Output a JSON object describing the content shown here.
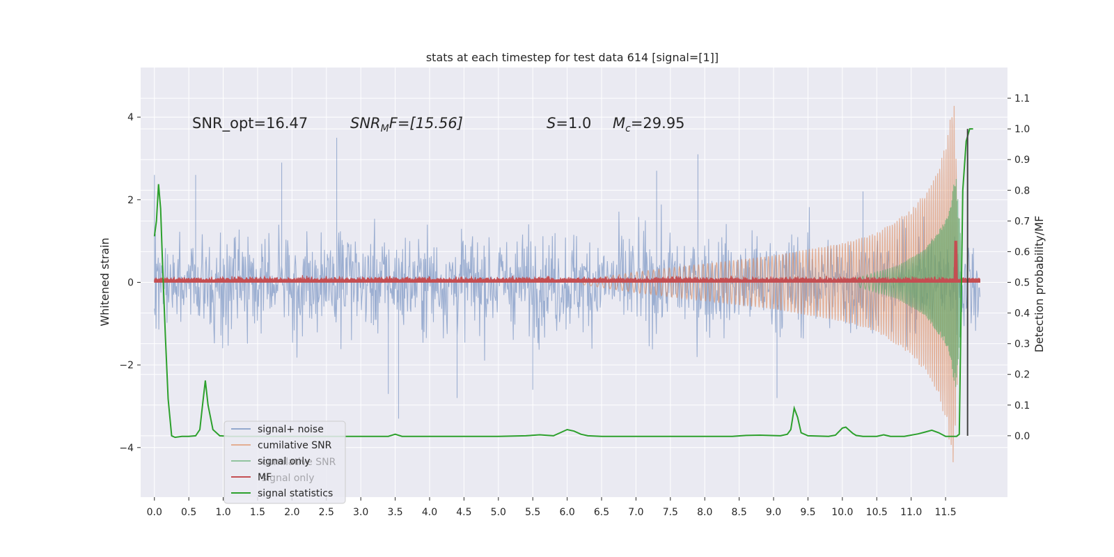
{
  "chart_data": {
    "type": "line",
    "title": "stats at each timestep for test data 614 [signal=[1]]",
    "xlabel": "",
    "ylabel": "Whitened strain",
    "y2label": "Detection probability/MF",
    "xlim": [
      -0.2,
      12.4
    ],
    "ylim": [
      -5.2,
      5.2
    ],
    "y2lim": [
      -0.2,
      1.2
    ],
    "x_ticks": [
      0.0,
      0.5,
      1.0,
      1.5,
      2.0,
      2.5,
      3.0,
      3.5,
      4.0,
      4.5,
      5.0,
      5.5,
      6.0,
      6.5,
      7.0,
      7.5,
      8.0,
      8.5,
      9.0,
      9.5,
      10.0,
      10.5,
      11.0,
      11.5
    ],
    "x_tick_labels": [
      "0.0",
      "0.5",
      "1.0",
      "1.5",
      "2.0",
      "2.5",
      "3.0",
      "3.5",
      "4.0",
      "4.5",
      "5.0",
      "5.5",
      "6.0",
      "6.5",
      "7.0",
      "7.5",
      "8.0",
      "8.5",
      "9.0",
      "9.5",
      "10.0",
      "10.5",
      "11.0",
      "11.5"
    ],
    "y_ticks": [
      -4,
      -2,
      0,
      2,
      4
    ],
    "y_tick_labels": [
      "−4",
      "−2",
      "0",
      "2",
      "4"
    ],
    "y2_ticks": [
      0.0,
      0.1,
      0.2,
      0.3,
      0.4,
      0.5,
      0.6,
      0.7,
      0.8,
      0.9,
      1.0,
      1.1
    ],
    "y2_tick_labels": [
      "0.0",
      "0.1",
      "0.2",
      "0.3",
      "0.4",
      "0.5",
      "0.6",
      "0.7",
      "0.8",
      "0.9",
      "1.0",
      "1.1"
    ],
    "grid": true,
    "legend_position": "lower-left",
    "legend": [
      "signal+ noise",
      "cumilative SNR",
      "signal only",
      "MF",
      "signal statistics"
    ],
    "legend_ghost": [
      "cumilative SNR",
      "signal only"
    ],
    "annotations": {
      "snr_opt": "SNR_opt=16.47",
      "snr_mf_name": "SNR",
      "snr_mf_sub": "M",
      "snr_mf_tail": "F=[15.56]",
      "s_name": "S",
      "s_value": "=1.0",
      "mc_name": "M",
      "mc_sub": "c",
      "mc_value": "=29.95"
    },
    "series": [
      {
        "name": "signal+ noise",
        "color": "#4c72b0",
        "axis": "left",
        "x_range": [
          0.0,
          12.0
        ],
        "typical_amplitude": 1.5,
        "spikes": [
          [
            0.0,
            2.6
          ],
          [
            0.6,
            2.6
          ],
          [
            1.85,
            2.9
          ],
          [
            2.65,
            3.5
          ],
          [
            3.4,
            -2.7
          ],
          [
            3.55,
            -3.3
          ],
          [
            4.4,
            -2.8
          ],
          [
            5.5,
            -2.6
          ],
          [
            7.3,
            2.7
          ],
          [
            7.9,
            3.1
          ],
          [
            9.05,
            -2.8
          ],
          [
            10.3,
            2.2
          ]
        ]
      },
      {
        "name": "cumilative SNR",
        "color": "#dd8452",
        "axis": "left",
        "x_range": [
          6.2,
          11.68
        ],
        "envelope": [
          [
            6.2,
            0.05
          ],
          [
            7.0,
            0.25
          ],
          [
            8.0,
            0.45
          ],
          [
            9.0,
            0.65
          ],
          [
            10.0,
            0.95
          ],
          [
            10.5,
            1.2
          ],
          [
            11.0,
            1.75
          ],
          [
            11.3,
            2.4
          ],
          [
            11.5,
            3.3
          ],
          [
            11.62,
            4.5
          ],
          [
            11.68,
            2.0
          ]
        ]
      },
      {
        "name": "signal only",
        "color": "#55a868",
        "axis": "left",
        "x_range": [
          10.2,
          11.72
        ],
        "envelope": [
          [
            10.2,
            0.1
          ],
          [
            10.8,
            0.4
          ],
          [
            11.2,
            0.8
          ],
          [
            11.5,
            1.5
          ],
          [
            11.65,
            2.6
          ],
          [
            11.72,
            1.2
          ]
        ]
      },
      {
        "name": "MF",
        "color": "#c44e52",
        "axis": "left",
        "baseline": 0.05,
        "noise": 0.12,
        "x_range": [
          0.0,
          12.0
        ],
        "peak": [
          11.65,
          1.0
        ]
      },
      {
        "name": "signal statistics",
        "color": "#2ca02c",
        "axis": "right",
        "x": [
          0.0,
          0.03,
          0.06,
          0.09,
          0.12,
          0.16,
          0.2,
          0.25,
          0.3,
          0.4,
          0.5,
          0.6,
          0.66,
          0.7,
          0.74,
          0.78,
          0.85,
          0.95,
          1.1,
          3.4,
          3.5,
          3.6,
          3.8,
          4.5,
          5.0,
          5.4,
          5.6,
          5.8,
          5.9,
          6.0,
          6.1,
          6.2,
          6.3,
          6.5,
          8.4,
          8.6,
          8.8,
          9.1,
          9.2,
          9.25,
          9.3,
          9.35,
          9.4,
          9.5,
          9.8,
          9.9,
          10.0,
          10.05,
          10.1,
          10.15,
          10.2,
          10.3,
          10.5,
          10.6,
          10.7,
          10.9,
          11.1,
          11.2,
          11.3,
          11.4,
          11.5,
          11.6,
          11.66,
          11.7,
          11.75,
          11.8,
          11.85,
          11.9
        ],
        "values": [
          0.65,
          0.7,
          0.82,
          0.74,
          0.55,
          0.32,
          0.12,
          0.0,
          -0.005,
          -0.002,
          -0.002,
          0.0,
          0.02,
          0.1,
          0.18,
          0.1,
          0.02,
          0.0,
          -0.002,
          -0.002,
          0.005,
          -0.002,
          -0.002,
          -0.002,
          -0.002,
          0.0,
          0.003,
          0.0,
          0.01,
          0.02,
          0.015,
          0.005,
          0.0,
          -0.002,
          -0.002,
          0.001,
          0.002,
          0.0,
          0.005,
          0.02,
          0.09,
          0.06,
          0.01,
          0.0,
          -0.002,
          0.002,
          0.025,
          0.028,
          0.018,
          0.008,
          0.001,
          -0.002,
          -0.002,
          0.003,
          -0.002,
          -0.002,
          0.006,
          0.012,
          0.018,
          0.01,
          -0.002,
          -0.002,
          -0.002,
          0.005,
          0.8,
          0.96,
          1.0,
          1.0
        ]
      },
      {
        "name": "marker",
        "color": "#404040",
        "axis": "right",
        "x": [
          11.82,
          11.82
        ],
        "values": [
          0.0,
          1.0
        ]
      }
    ]
  }
}
